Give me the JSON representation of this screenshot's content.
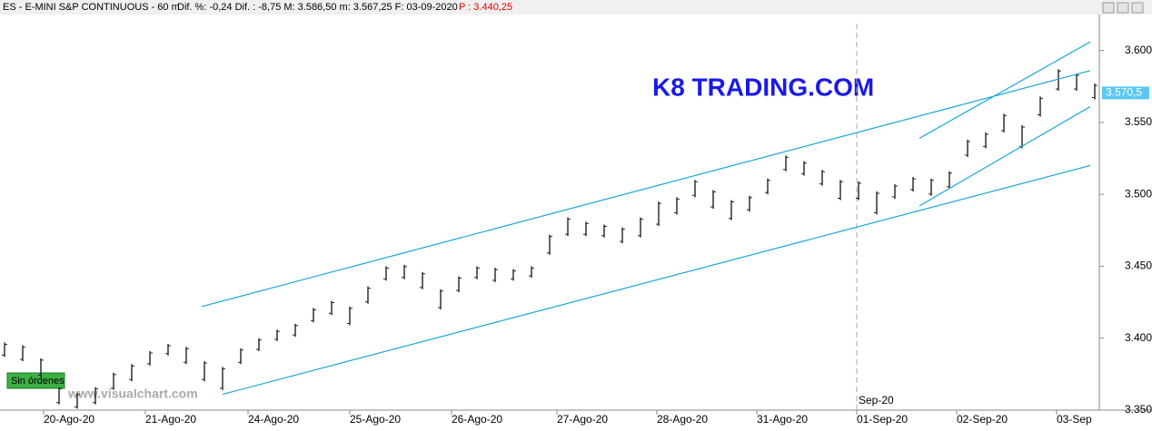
{
  "chart_data": {
    "type": "ohlc",
    "header": {
      "title": "ES - E-MINI S&P CONTINUOUS -  60 m",
      "stats": "Dif. %: -0,24   Dif. : -8,75   M: 3.586,50   m: 3.567,25   F: 03-09-2020",
      "price": "P : 3.440,25"
    },
    "watermark_title": "K8 TRADING.COM",
    "site": "www.visualchart.com",
    "orders_badge": "Sin órdenes",
    "color": "#222222",
    "line_color": "#1aa6d6",
    "high": [
      3397,
      3395,
      3386,
      3366,
      3362,
      3366,
      3376,
      3382,
      3391,
      3396,
      3394,
      3384,
      3380,
      3393,
      3400,
      3406,
      3410,
      3421,
      3426,
      3422,
      3436,
      3450,
      3451,
      3446,
      3434,
      3443,
      3450,
      3449,
      3448,
      3450,
      3472,
      3484,
      3481,
      3479,
      3477,
      3484,
      3495,
      3498,
      3510,
      3503,
      3496,
      3499,
      3511,
      3527,
      3523,
      3517,
      3510,
      3509,
      3502,
      3507,
      3512,
      3511,
      3516,
      3538,
      3543,
      3556,
      3548,
      3568,
      3587,
      3584,
      3577
    ],
    "low": [
      3387,
      3384,
      3373,
      3354,
      3351,
      3354,
      3364,
      3370,
      3381,
      3388,
      3382,
      3370,
      3364,
      3382,
      3391,
      3398,
      3401,
      3411,
      3416,
      3409,
      3424,
      3440,
      3441,
      3434,
      3420,
      3432,
      3441,
      3439,
      3440,
      3442,
      3458,
      3471,
      3471,
      3470,
      3466,
      3470,
      3478,
      3486,
      3498,
      3490,
      3482,
      3488,
      3500,
      3516,
      3513,
      3506,
      3496,
      3496,
      3486,
      3497,
      3502,
      3499,
      3504,
      3526,
      3532,
      3543,
      3532,
      3554,
      3572,
      3572,
      3566
    ],
    "xlim": [
      -0.25,
      60.25
    ],
    "xticks": [
      {
        "value": 2.15,
        "label": "20-Ago-20"
      },
      {
        "value": 7.75,
        "label": "21-Ago-20"
      },
      {
        "value": 13.4,
        "label": "24-Ago-20"
      },
      {
        "value": 19.0,
        "label": "25-Ago-20"
      },
      {
        "value": 24.6,
        "label": "26-Ago-20"
      },
      {
        "value": 30.4,
        "label": "27-Ago-20"
      },
      {
        "value": 35.9,
        "label": "28-Ago-20"
      },
      {
        "value": 41.4,
        "label": "31-Ago-20"
      },
      {
        "value": 46.9,
        "label": "01-Sep-20"
      },
      {
        "value": 52.4,
        "label": "02-Sep-20"
      },
      {
        "value": 57.9,
        "label": "03-Sep"
      }
    ],
    "period_marker": {
      "label": "Sep-20",
      "x": 46.9
    },
    "ylim": [
      3350,
      3625
    ],
    "yticks": [
      {
        "value": 3350,
        "label": "3.350"
      },
      {
        "value": 3400,
        "label": "3.400"
      },
      {
        "value": 3450,
        "label": "3.450"
      },
      {
        "value": 3500,
        "label": "3.500"
      },
      {
        "value": 3550,
        "label": "3.550"
      },
      {
        "value": 3600,
        "label": "3.600"
      }
    ],
    "last_price": {
      "value": 3570.5,
      "label": "3.570,5"
    },
    "trend_lines": [
      {
        "x": [
          10.85,
          59.75
        ],
        "y": [
          3422,
          3586
        ]
      },
      {
        "x": [
          12.0,
          59.75
        ],
        "y": [
          3361,
          3520
        ]
      },
      {
        "x": [
          50.35,
          59.75
        ],
        "y": [
          3539,
          3606
        ]
      },
      {
        "x": [
          50.35,
          59.75
        ],
        "y": [
          3492,
          3561
        ]
      }
    ]
  }
}
